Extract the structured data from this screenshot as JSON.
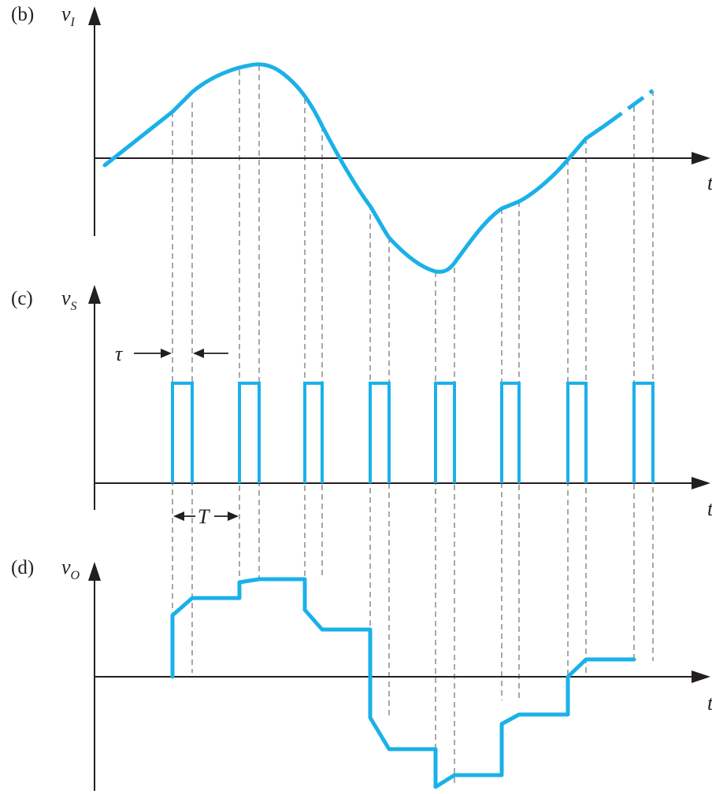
{
  "panels": {
    "b": {
      "tag": "(b)",
      "var": "v",
      "sub": "I"
    },
    "c": {
      "tag": "(c)",
      "var": "v",
      "sub": "S"
    },
    "d": {
      "tag": "(d)",
      "var": "v",
      "sub": "O"
    }
  },
  "time_label": "t",
  "tau_label": "τ",
  "period_label": "T",
  "colors": {
    "waveform": "#1ab1e8",
    "axis": "#231f20",
    "guide": "#6d6e71"
  }
}
